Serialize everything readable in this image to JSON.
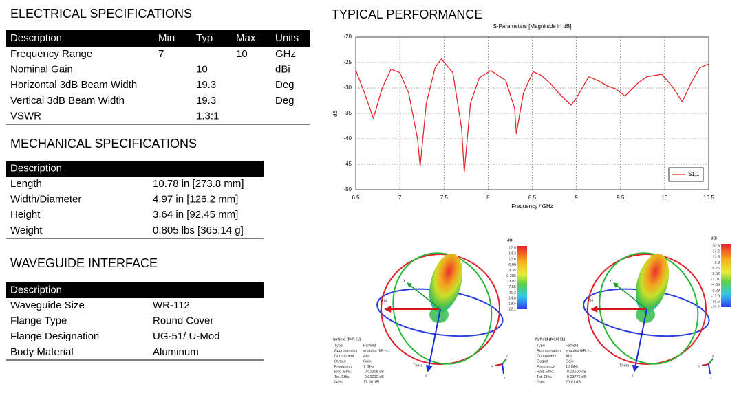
{
  "electrical": {
    "title": "ELECTRICAL SPECIFICATIONS",
    "header": [
      "Description",
      "Min",
      "Typ",
      "Max",
      "Units"
    ],
    "rows": [
      {
        "description": "Frequency Range",
        "min": "7",
        "max": "10",
        "units": "GHz"
      },
      {
        "description": "Nominal Gain",
        "typ": "10",
        "units": "dBi"
      },
      {
        "description": "Horizontal 3dB Beam Width",
        "typ": "19.3",
        "units": "Deg"
      },
      {
        "description": "Vertical 3dB Beam Width",
        "typ": "19.3",
        "units": "Deg"
      },
      {
        "description": "VSWR",
        "typ": "1.3:1"
      }
    ]
  },
  "mechanical": {
    "title": "MECHANICAL SPECIFICATIONS",
    "header": [
      "Description"
    ],
    "rows": [
      [
        "Length",
        "10.78 in [273.8 mm]"
      ],
      [
        "Width/Diameter",
        "4.97 in [126.2 mm]"
      ],
      [
        "Height",
        "3.64 in [92.45 mm]"
      ],
      [
        "Weight",
        "0.805 lbs [365.14 g]"
      ]
    ]
  },
  "waveguide": {
    "title": "WAVEGUIDE INTERFACE",
    "header": [
      "Description"
    ],
    "rows": [
      [
        "Waveguide Size",
        "WR-112"
      ],
      [
        "Flange Type",
        "Round Cover"
      ],
      [
        "Flange Designation",
        "UG-51/ U-Mod"
      ],
      [
        "Body Material",
        "Aluminum"
      ]
    ]
  },
  "performance_title": "TYPICAL PERFORMANCE",
  "chart_data": {
    "type": "line",
    "title": "S-Parameters [Magnitude in dB]",
    "x_label": "Frequency / GHz",
    "y_label": "dB",
    "x": [
      6.5,
      6.6,
      6.7,
      6.8,
      6.9,
      7.0,
      7.1,
      7.2,
      7.23,
      7.3,
      7.4,
      7.47,
      7.6,
      7.7,
      7.73,
      7.8,
      7.9,
      8.03,
      8.2,
      8.3,
      8.32,
      8.4,
      8.51,
      8.6,
      8.7,
      8.8,
      8.94,
      9.0,
      9.14,
      9.25,
      9.35,
      9.45,
      9.55,
      9.7,
      9.8,
      9.97,
      10.1,
      10.2,
      10.3,
      10.4,
      10.5
    ],
    "series": [
      {
        "name": "S1,1",
        "color": "#e8262b",
        "values": [
          -26.5,
          -31,
          -36,
          -30,
          -26.3,
          -27,
          -31,
          -40,
          -45.4,
          -33,
          -26,
          -24.3,
          -27,
          -38,
          -46.6,
          -33,
          -28,
          -26.6,
          -28.5,
          -34,
          -39,
          -31,
          -26.8,
          -27.5,
          -29,
          -31,
          -33.4,
          -32,
          -27.8,
          -28.6,
          -29.6,
          -30.2,
          -31.6,
          -29,
          -27.8,
          -27.3,
          -30,
          -32.7,
          -29,
          -26,
          -25.3
        ]
      }
    ],
    "xlim": [
      6.5,
      10.5
    ],
    "ylim": [
      -50,
      -20
    ],
    "xticks": [
      6.5,
      7,
      7.5,
      8,
      8.5,
      9,
      9.5,
      10,
      10.5
    ],
    "yticks": [
      -50,
      -45,
      -40,
      -35,
      -30,
      -25,
      -20
    ],
    "grid": true,
    "legend": "lower right"
  },
  "farfield": [
    {
      "title": "farfield (f=7) [1]",
      "props": [
        [
          "Type",
          "Farfield"
        ],
        [
          "Approximation",
          "enabled (kR >..."
        ],
        [
          "Component",
          "Abs"
        ],
        [
          "Output",
          "Gain"
        ],
        [
          "Frequency",
          "7 GHz"
        ],
        [
          "Rad. Effic.",
          "-0.02308 dB"
        ],
        [
          "Tot. Effic.",
          "-0.03010 dB"
        ],
        [
          "Gain",
          "17.90 dBi"
        ]
      ],
      "colorbar_title": "dBi",
      "colorbar": [
        "17.9",
        "14.3",
        "10.6",
        "6.99",
        "3.35",
        "-0.286",
        "-3.92",
        "-7.56",
        "-11.2",
        "-14.8",
        "-18.5",
        "-22.1"
      ],
      "labels": {
        "phi": "Phi",
        "theta": "Theta",
        "x": "x",
        "y": "y",
        "z": "z"
      }
    },
    {
      "title": "farfield (f=10) [1]",
      "props": [
        [
          "Type",
          "Farfield"
        ],
        [
          "Approximation",
          "enabled (kR >..."
        ],
        [
          "Component",
          "Abs"
        ],
        [
          "Output",
          "Gain"
        ],
        [
          "Frequency",
          "10 GHz"
        ],
        [
          "Rad. Effic.",
          "-0.03100 dB"
        ],
        [
          "Tot. Effic.",
          "-0.03775 dB"
        ],
        [
          "Gain",
          "20.81 dBi"
        ]
      ],
      "colorbar_title": "dBi",
      "colorbar": [
        "20.8",
        "17.2",
        "13.5",
        "9.9",
        "6.26",
        "2.62",
        "-1.01",
        "-4.65",
        "-8.28",
        "-11.9",
        "-15.6",
        "-19.2"
      ],
      "labels": {
        "phi": "Phi",
        "theta": "Theta",
        "x": "x",
        "y": "y",
        "z": "z"
      }
    }
  ]
}
